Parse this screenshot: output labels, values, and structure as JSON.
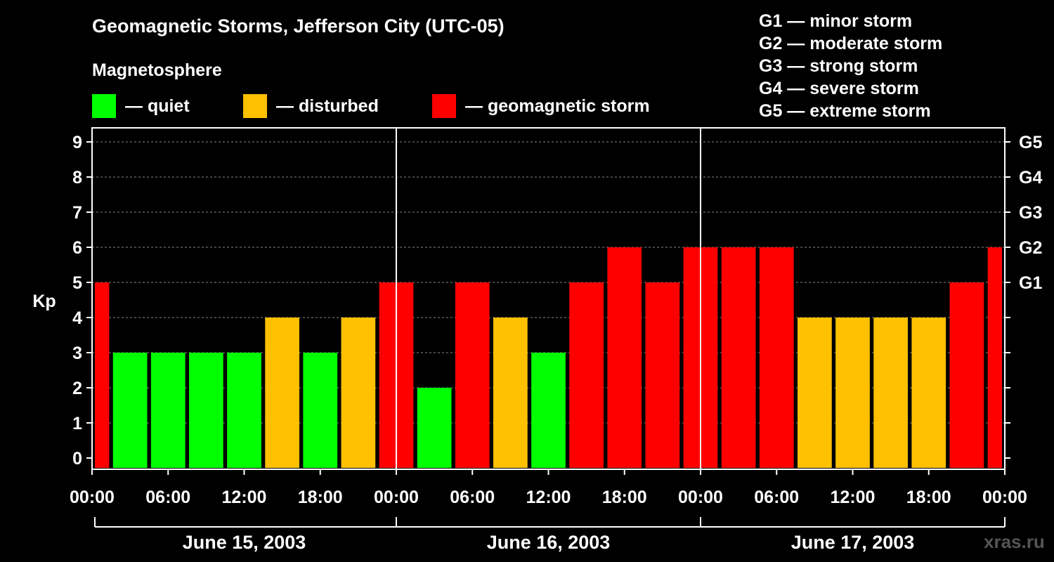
{
  "chart_data": {
    "type": "bar",
    "title": "Geomagnetic Storms, Jefferson City (UTC-05)",
    "ylabel": "Kp",
    "ylim": [
      0,
      9
    ],
    "yticks": [
      "0",
      "1",
      "2",
      "3",
      "4",
      "5",
      "6",
      "7",
      "8",
      "9"
    ],
    "right_axis_labels": [
      {
        "kp": 5,
        "label": "G1"
      },
      {
        "kp": 6,
        "label": "G2"
      },
      {
        "kp": 7,
        "label": "G3"
      },
      {
        "kp": 8,
        "label": "G4"
      },
      {
        "kp": 9,
        "label": "G5"
      }
    ],
    "x_tick_labels": [
      "00:00",
      "06:00",
      "12:00",
      "18:00",
      "00:00",
      "06:00",
      "12:00",
      "18:00",
      "00:00",
      "06:00",
      "12:00",
      "18:00",
      "00:00"
    ],
    "days": [
      "June 15, 2003",
      "June 16, 2003",
      "June 17, 2003"
    ],
    "values": [
      5,
      3,
      3,
      3,
      3,
      4,
      3,
      4,
      5,
      2,
      5,
      4,
      3,
      5,
      6,
      5,
      6,
      6,
      6,
      4,
      4,
      4,
      4,
      5,
      6
    ],
    "bar_hours": [
      0,
      3,
      6,
      9,
      12,
      15,
      18,
      21,
      24,
      27,
      30,
      33,
      36,
      39,
      42,
      45,
      48,
      51,
      54,
      57,
      60,
      63,
      66,
      69,
      72
    ],
    "grid": true,
    "colors": {
      "quiet": "#00ff00",
      "disturbed": "#ffc000",
      "storm": "#ff0000"
    },
    "legend": [
      {
        "label": "— quiet",
        "color": "#00ff00"
      },
      {
        "label": "— disturbed",
        "color": "#ffc000"
      },
      {
        "label": "— geomagnetic storm",
        "color": "#ff0000"
      }
    ]
  },
  "magnetosphere_label": "Magnetosphere",
  "g_scale": [
    "G1 — minor storm",
    "G2 — moderate storm",
    "G3 — strong storm",
    "G4 — severe storm",
    "G5 — extreme storm"
  ],
  "watermark": "xras.ru"
}
